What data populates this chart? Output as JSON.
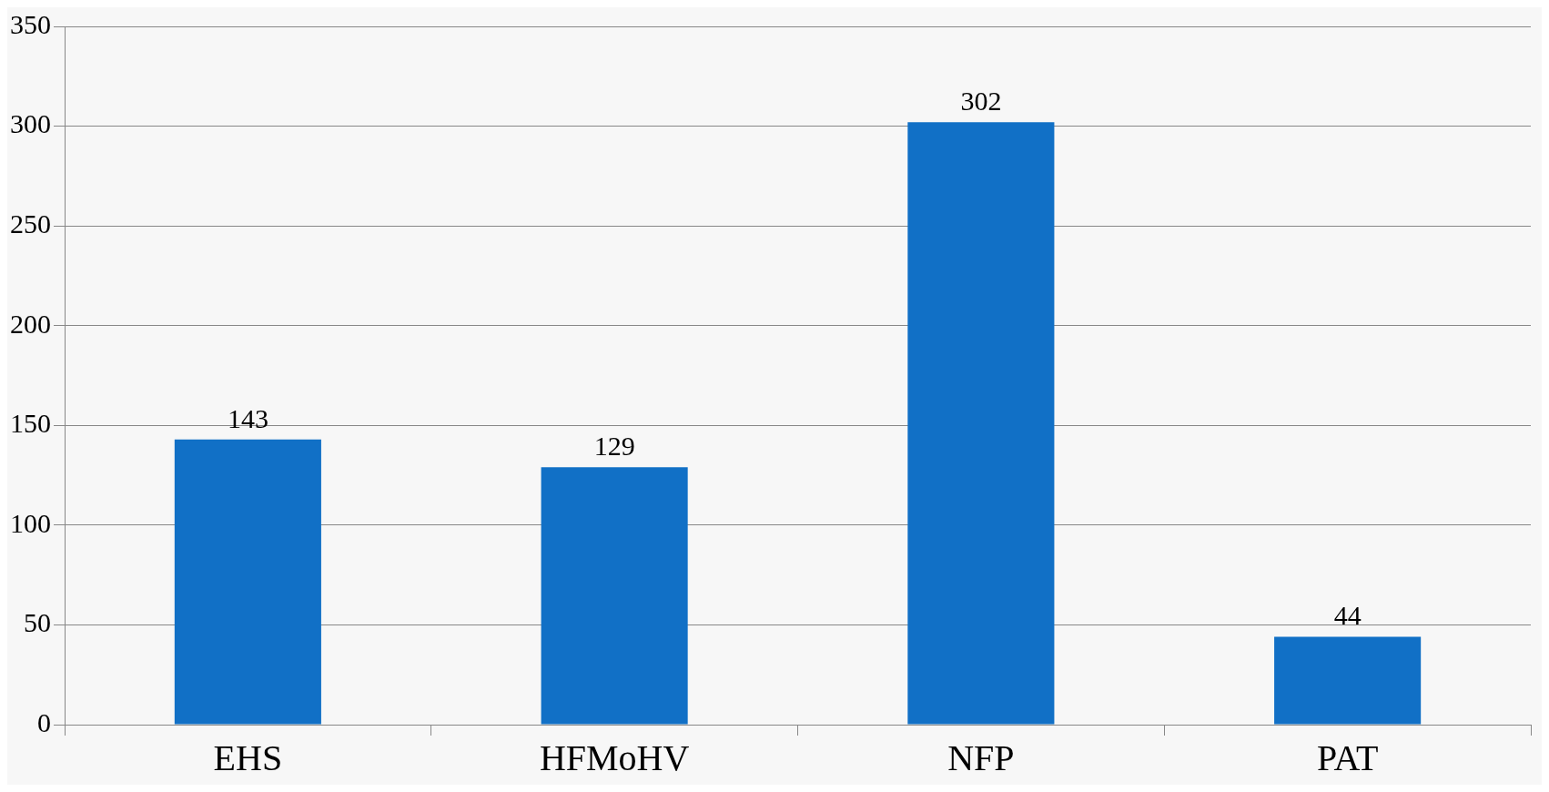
{
  "chart_data": {
    "type": "bar",
    "categories": [
      "EHS",
      "HFMoHV",
      "NFP",
      "PAT"
    ],
    "values": [
      143,
      129,
      302,
      44
    ],
    "color": "#1170c6",
    "ylim": [
      0,
      350
    ],
    "yticks": [
      0,
      50,
      100,
      150,
      200,
      250,
      300,
      350
    ],
    "grid": "y",
    "data_labels": true,
    "legend": false
  }
}
